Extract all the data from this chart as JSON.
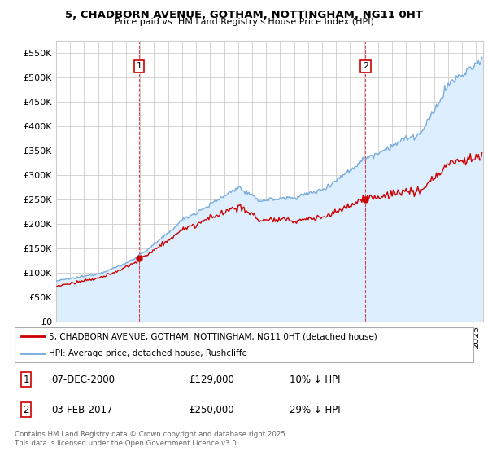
{
  "title1": "5, CHADBORN AVENUE, GOTHAM, NOTTINGHAM, NG11 0HT",
  "title2": "Price paid vs. HM Land Registry's House Price Index (HPI)",
  "ytick_values": [
    0,
    50000,
    100000,
    150000,
    200000,
    250000,
    300000,
    350000,
    400000,
    450000,
    500000,
    550000
  ],
  "ylim": [
    0,
    575000
  ],
  "xlim_start": 1995.0,
  "xlim_end": 2025.5,
  "sale1_x": 2000.92,
  "sale1_y": 129000,
  "sale2_x": 2017.09,
  "sale2_y": 250000,
  "line1_color": "#cc0000",
  "line2_color": "#7aacdc",
  "line2_fill": "#ddeeff",
  "legend1_label": "5, CHADBORN AVENUE, GOTHAM, NOTTINGHAM, NG11 0HT (detached house)",
  "legend2_label": "HPI: Average price, detached house, Rushcliffe",
  "sale1_date": "07-DEC-2000",
  "sale1_price": "£129,000",
  "sale1_hpi": "10% ↓ HPI",
  "sale2_date": "03-FEB-2017",
  "sale2_price": "£250,000",
  "sale2_hpi": "29% ↓ HPI",
  "marker_color": "#cc0000",
  "footer": "Contains HM Land Registry data © Crown copyright and database right 2025.\nThis data is licensed under the Open Government Licence v3.0."
}
